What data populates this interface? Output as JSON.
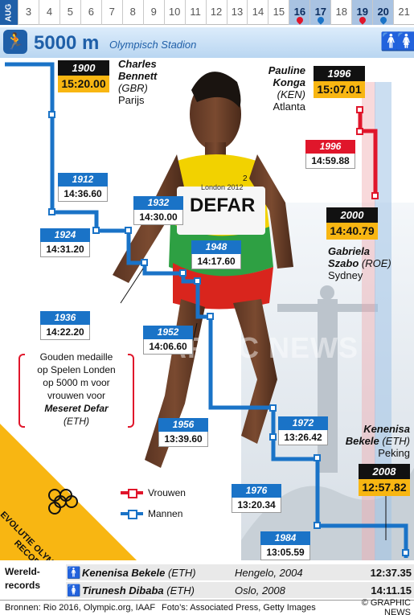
{
  "calendar": {
    "month": "AUG",
    "days": [
      {
        "label": "3",
        "hl": false,
        "drop": ""
      },
      {
        "label": "4",
        "hl": false,
        "drop": ""
      },
      {
        "label": "5",
        "hl": false,
        "drop": ""
      },
      {
        "label": "6",
        "hl": false,
        "drop": ""
      },
      {
        "label": "7",
        "hl": false,
        "drop": ""
      },
      {
        "label": "8",
        "hl": false,
        "drop": ""
      },
      {
        "label": "9",
        "hl": false,
        "drop": ""
      },
      {
        "label": "10",
        "hl": false,
        "drop": ""
      },
      {
        "label": "11",
        "hl": false,
        "drop": ""
      },
      {
        "label": "12",
        "hl": false,
        "drop": ""
      },
      {
        "label": "13",
        "hl": false,
        "drop": ""
      },
      {
        "label": "14",
        "hl": false,
        "drop": ""
      },
      {
        "label": "15",
        "hl": false,
        "drop": ""
      },
      {
        "label": "16",
        "hl": true,
        "drop": "w"
      },
      {
        "label": "17",
        "hl": true,
        "drop": "m"
      },
      {
        "label": "18",
        "hl": false,
        "drop": ""
      },
      {
        "label": "19",
        "hl": true,
        "drop": "w"
      },
      {
        "label": "20",
        "hl": true,
        "drop": "m"
      },
      {
        "label": "21",
        "hl": false,
        "drop": ""
      }
    ]
  },
  "header": {
    "title": "5000 m",
    "venue": "Olympisch Stadion",
    "male_symbol": "🚹",
    "female_symbol": "🚺"
  },
  "colors": {
    "men": "#1a73c7",
    "women": "#e0162b",
    "record": "#f8b612",
    "title_blue": "#1f5fa8"
  },
  "records": {
    "men": [
      {
        "year": "1900",
        "time": "15:20.00",
        "current": true
      },
      {
        "year": "1912",
        "time": "14:36.60",
        "current": false
      },
      {
        "year": "1924",
        "time": "14:31.20",
        "current": false
      },
      {
        "year": "1932",
        "time": "14:30.00",
        "current": false
      },
      {
        "year": "1936",
        "time": "14:22.20",
        "current": false
      },
      {
        "year": "1948",
        "time": "14:17.60",
        "current": false
      },
      {
        "year": "1952",
        "time": "14:06.60",
        "current": false
      },
      {
        "year": "1956",
        "time": "13:39.60",
        "current": false
      },
      {
        "year": "1972",
        "time": "13:26.42",
        "current": false
      },
      {
        "year": "1976",
        "time": "13:20.34",
        "current": false
      },
      {
        "year": "1984",
        "time": "13:05.59",
        "current": false
      },
      {
        "year": "2008",
        "time": "12:57.82",
        "current": true
      }
    ],
    "women": [
      {
        "year": "1996",
        "time": "15:07.01",
        "current": true
      },
      {
        "year": "1996",
        "time": "14:59.88",
        "current": false
      },
      {
        "year": "2000",
        "time": "14:40.79",
        "current": true
      }
    ]
  },
  "athletes": {
    "bennett": {
      "first": "Charles",
      "last": "Bennett",
      "country": "(GBR)",
      "place": "Parijs"
    },
    "konga": {
      "first": "Pauline",
      "last": "Konga",
      "country": "(KEN)",
      "place": "Atlanta"
    },
    "szabo": {
      "first": "Gabriela",
      "last": "Szabo",
      "country": "(ROE)",
      "place": "Sydney"
    },
    "bekele": {
      "first": "Kenenisa",
      "last": "Bekele",
      "country": "(ETH)",
      "place": "Peking"
    }
  },
  "bib": {
    "name": "DEFAR",
    "event": "London 2012",
    "number": "2"
  },
  "note": {
    "line1": "Gouden medaille",
    "line2": "op Spelen Londen",
    "line3": "op 5000 m voor",
    "line4": "vrouwen voor",
    "name": "Meseret Defar",
    "country": "(ETH)"
  },
  "legend": {
    "women": "Vrouwen",
    "men": "Mannen"
  },
  "banner": {
    "line1": "EVOLUTIE OLYMPISCHE",
    "line2": "RECORDS"
  },
  "watermark": "GRAPHIC NEWS",
  "world_records": {
    "label_line1": "Wereld-",
    "label_line2": "records",
    "rows": [
      {
        "icon": "🚹",
        "name": "Kenenisa Bekele",
        "country": "(ETH)",
        "place": "Hengelo, 2004",
        "time": "12:37.35"
      },
      {
        "icon": "🚺",
        "name": "Tirunesh Dibaba",
        "country": "(ETH)",
        "place": "Oslo, 2008",
        "time": "14:11.15"
      }
    ]
  },
  "footer": {
    "sources": "Bronnen: Rio 2016, Olympic.org, IAAF",
    "photos": "Foto’s: Associated Press, Getty Images",
    "copyright": "© GRAPHIC NEWS"
  }
}
